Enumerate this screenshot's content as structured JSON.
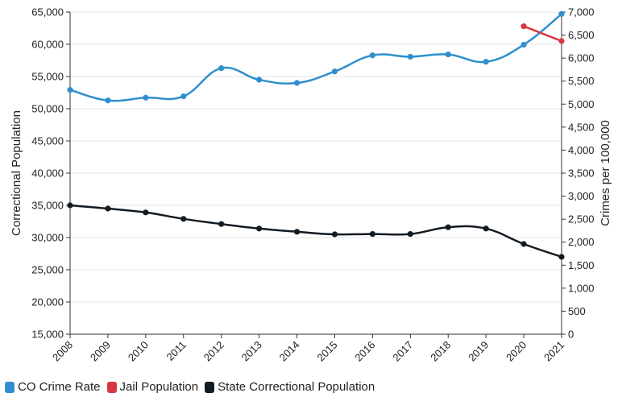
{
  "chart_data": {
    "type": "line",
    "x": [
      "2008",
      "2009",
      "2010",
      "2011",
      "2012",
      "2013",
      "2014",
      "2015",
      "2016",
      "2017",
      "2018",
      "2019",
      "2020",
      "2021"
    ],
    "y_left": {
      "label": "Correctional Population",
      "range": [
        15000,
        65000
      ],
      "ticks": [
        "15,000",
        "20,000",
        "25,000",
        "30,000",
        "35,000",
        "40,000",
        "45,000",
        "50,000",
        "55,000",
        "60,000",
        "65,000"
      ]
    },
    "y_right": {
      "label": "Crimes per 100,000",
      "range": [
        0,
        7000
      ],
      "ticks": [
        "0",
        "500",
        "1,000",
        "1,500",
        "2,000",
        "2,500",
        "3,000",
        "3,500",
        "4,000",
        "4,500",
        "5,000",
        "5,500",
        "6,000",
        "6,500",
        "7,000"
      ]
    },
    "grid": true,
    "legend_position": "bottom-left",
    "series": [
      {
        "name": "CO Crime Rate",
        "axis": "right",
        "color": "#2f8fce",
        "values": [
          5310,
          5080,
          5140,
          5170,
          5780,
          5530,
          5460,
          5710,
          6060,
          6030,
          6080,
          5920,
          6290,
          6960
        ]
      },
      {
        "name": "Jail Population",
        "axis": "left",
        "color": "#d9373f",
        "values": [
          null,
          null,
          null,
          null,
          null,
          null,
          null,
          null,
          null,
          null,
          null,
          null,
          62800,
          60500
        ]
      },
      {
        "name": "State Correctional Population",
        "axis": "left",
        "color": "#131b22",
        "values": [
          35000,
          34500,
          33900,
          32900,
          32100,
          31400,
          30900,
          30500,
          30550,
          30550,
          31600,
          31400,
          29000,
          27000
        ]
      }
    ]
  }
}
